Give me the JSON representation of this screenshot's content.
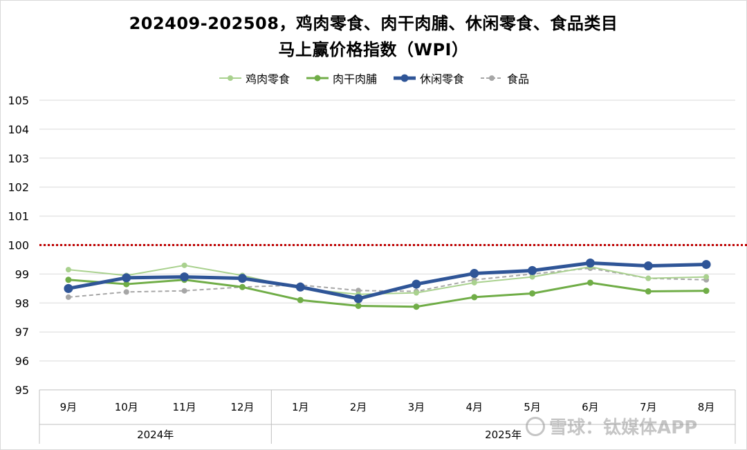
{
  "title_line1": "202409-202508，鸡肉零食、肉干肉脯、休闲零食、食品类目",
  "title_line2": "马上赢价格指数（WPI）",
  "watermark": "雪球：钛媒体APP",
  "chart_data": {
    "type": "line",
    "title": "202409-202508，鸡肉零食、肉干肉脯、休闲零食、食品类目 马上赢价格指数（WPI）",
    "categories": [
      "9月",
      "10月",
      "11月",
      "12月",
      "1月",
      "2月",
      "3月",
      "4月",
      "5月",
      "6月",
      "7月",
      "8月"
    ],
    "year_groups": [
      {
        "label": "2024年",
        "count": 4
      },
      {
        "label": "2025年",
        "count": 8
      }
    ],
    "ylim": [
      95,
      105
    ],
    "yticks": [
      95,
      96,
      97,
      98,
      99,
      100,
      101,
      102,
      103,
      104,
      105
    ],
    "reference_line": {
      "value": 100,
      "color": "#c00000",
      "style": "dotted"
    },
    "legend_position": "top",
    "grid": "horizontal",
    "series": [
      {
        "name": "鸡肉零食",
        "color": "#a9d18e",
        "style": "solid-thin",
        "values": [
          99.15,
          98.95,
          99.3,
          98.95,
          98.5,
          98.3,
          98.35,
          98.7,
          98.9,
          99.25,
          98.85,
          98.9
        ]
      },
      {
        "name": "肉干肉脯",
        "color": "#70ad47",
        "style": "solid",
        "values": [
          98.8,
          98.65,
          98.8,
          98.55,
          98.1,
          97.9,
          97.87,
          98.2,
          98.33,
          98.7,
          98.4,
          98.42
        ]
      },
      {
        "name": "休闲零食",
        "color": "#2f5597",
        "style": "solid-bold",
        "values": [
          98.5,
          98.87,
          98.9,
          98.85,
          98.55,
          98.15,
          98.65,
          99.02,
          99.12,
          99.38,
          99.28,
          99.33
        ]
      },
      {
        "name": "食品",
        "color": "#a6a6a6",
        "style": "dashed",
        "values": [
          98.2,
          98.38,
          98.42,
          98.55,
          98.62,
          98.43,
          98.4,
          98.8,
          99.0,
          99.2,
          98.85,
          98.8
        ]
      }
    ]
  }
}
